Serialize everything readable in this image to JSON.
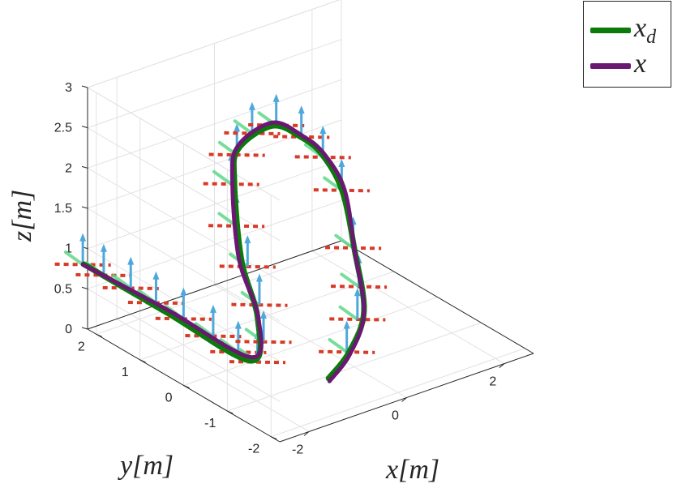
{
  "chart_data": {
    "type": "line3d",
    "xlabel": "x[m]",
    "ylabel": "y[m]",
    "zlabel": "z[m]",
    "xlim": [
      -2.6,
      2.6
    ],
    "ylim": [
      -2.2,
      2.2
    ],
    "zlim": [
      0,
      3
    ],
    "xticks": [
      "-2",
      "0",
      "2"
    ],
    "yticks": [
      "-2",
      "-1",
      "0",
      "1",
      "2"
    ],
    "zticks": [
      "0",
      "0.5",
      "1",
      "1.5",
      "2",
      "2.5",
      "3"
    ],
    "grid": true,
    "legend_position": "top-right",
    "colors": {
      "desired": "#0b7a0b",
      "actual": "#6a1872",
      "up_arrow": "#4ea8dc",
      "red_axis": "#d93a27",
      "green_axis": "#60d88a"
    },
    "series": [
      {
        "name": "x_d",
        "name_base": "x",
        "name_sub": "d",
        "points": [
          [
            -1.34,
            -1.91,
            0.43
          ],
          [
            -0.57,
            -1.52,
            0.47
          ],
          [
            0.46,
            -0.71,
            0.5
          ],
          [
            1.47,
            0.63,
            0.61
          ],
          [
            1.98,
            1.49,
            0.98
          ],
          [
            1.88,
            1.84,
            1.34
          ],
          [
            1.44,
            1.83,
            1.65
          ],
          [
            0.7,
            1.66,
            2.0
          ],
          [
            -0.34,
            1.27,
            2.06
          ],
          [
            -0.9,
            0.74,
            1.95
          ],
          [
            -1.33,
            0.1,
            1.27
          ],
          [
            -1.46,
            -0.42,
            0.73
          ],
          [
            -1.76,
            -0.6,
            0.32
          ],
          [
            -2.35,
            0.66,
            0.64
          ],
          [
            -3.08,
            1.75,
            1.05
          ]
        ]
      },
      {
        "name": "x",
        "points": [
          [
            -1.34,
            -1.93,
            0.4
          ],
          [
            -0.57,
            -1.54,
            0.45
          ],
          [
            0.46,
            -0.71,
            0.48
          ],
          [
            1.47,
            0.63,
            0.6
          ],
          [
            2.03,
            1.49,
            0.98
          ],
          [
            1.92,
            1.84,
            1.34
          ],
          [
            1.47,
            1.83,
            1.66
          ],
          [
            0.72,
            1.68,
            2.03
          ],
          [
            -0.33,
            1.29,
            2.09
          ],
          [
            -0.94,
            0.74,
            1.97
          ],
          [
            -1.38,
            0.1,
            1.29
          ],
          [
            -1.43,
            -0.4,
            0.73
          ],
          [
            -1.73,
            -0.58,
            0.35
          ],
          [
            -2.35,
            0.66,
            0.68
          ],
          [
            -3.1,
            1.75,
            1.05
          ]
        ]
      }
    ],
    "orientation_markers": {
      "positions": [
        [
          -3.1,
          1.75,
          1.05
        ],
        [
          -2.94,
          1.45,
          0.98
        ],
        [
          -2.7,
          1.1,
          0.88
        ],
        [
          -2.45,
          0.8,
          0.74
        ],
        [
          -2.2,
          0.45,
          0.6
        ],
        [
          -1.95,
          0.05,
          0.46
        ],
        [
          -1.75,
          -0.3,
          0.33
        ],
        [
          -1.58,
          -0.55,
          0.25
        ],
        [
          -1.5,
          -0.6,
          0.5
        ],
        [
          -1.45,
          -0.45,
          0.9
        ],
        [
          -1.38,
          -0.1,
          1.25
        ],
        [
          -1.25,
          0.3,
          1.6
        ],
        [
          -0.98,
          0.72,
          1.93
        ],
        [
          -0.48,
          1.15,
          2.05
        ],
        [
          0.1,
          1.45,
          2.1
        ],
        [
          0.8,
          1.68,
          1.98
        ],
        [
          1.45,
          1.83,
          1.65
        ],
        [
          1.9,
          1.84,
          1.3
        ],
        [
          1.98,
          1.5,
          0.98
        ],
        [
          1.5,
          0.7,
          0.62
        ],
        [
          0.9,
          -0.1,
          0.52
        ],
        [
          0.2,
          -0.85,
          0.5
        ],
        [
          -0.6,
          -1.5,
          0.47
        ]
      ],
      "up_vector": [
        0,
        0,
        0.35
      ]
    }
  }
}
